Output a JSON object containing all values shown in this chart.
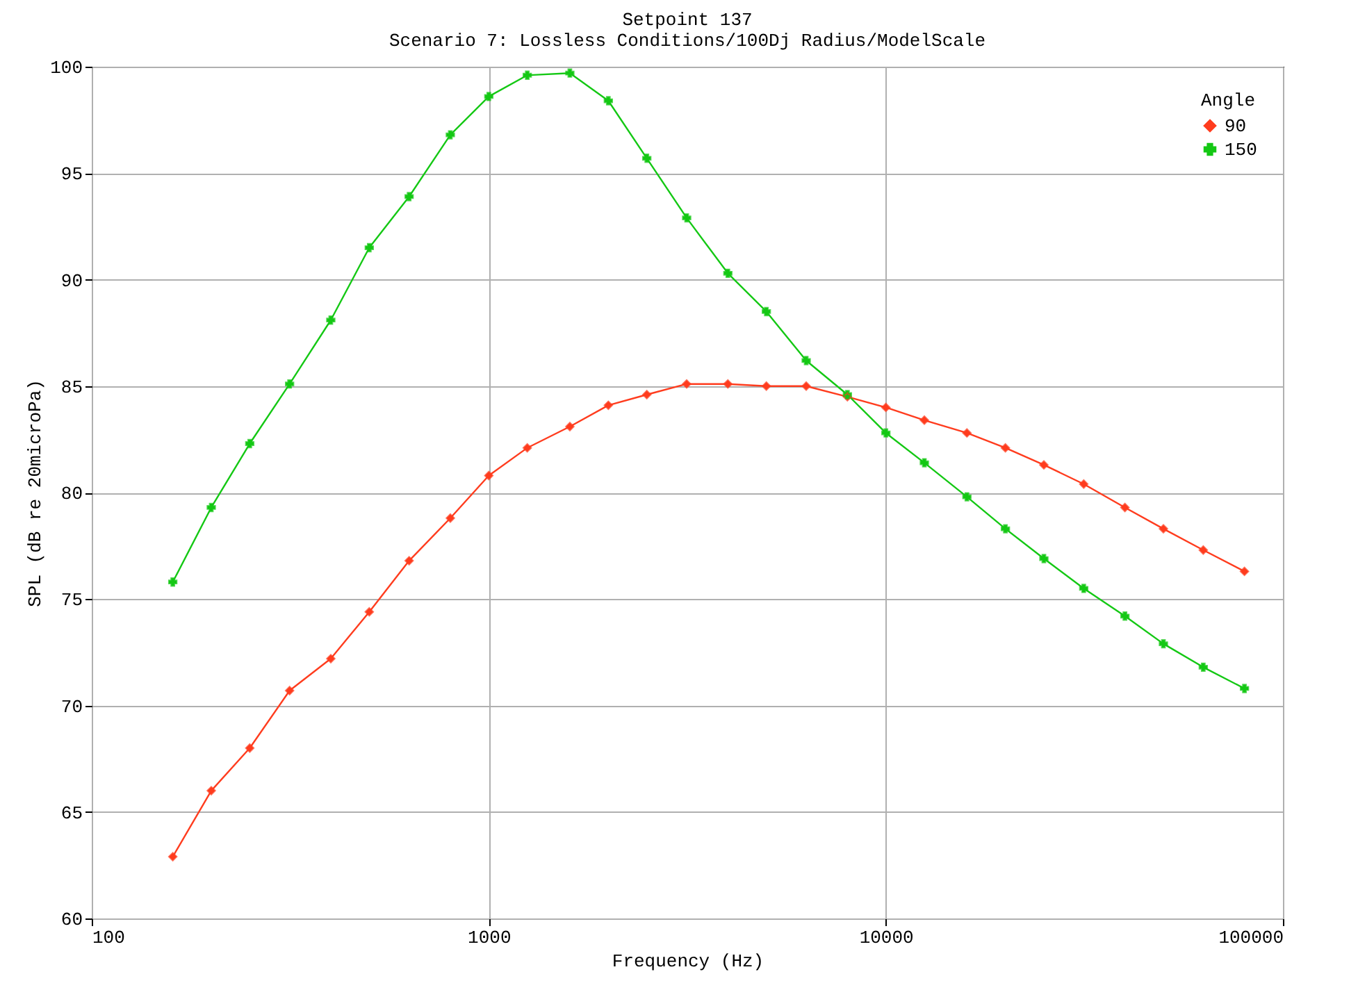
{
  "chart_data": {
    "type": "line",
    "title": "Setpoint 137",
    "subtitle": "Scenario 7: Lossless Conditions/100Dj Radius/ModelScale",
    "xlabel": "Frequency (Hz)",
    "ylabel": "SPL (dB re 20microPa)",
    "legend_title": "Angle",
    "log": "x",
    "x": [
      160,
      200,
      250,
      315,
      400,
      500,
      630,
      800,
      1000,
      1250,
      1600,
      2000,
      2500,
      3150,
      4000,
      5000,
      6300,
      8000,
      10000,
      12500,
      16000,
      20000,
      25000,
      31500,
      40000,
      50000,
      63000,
      80000
    ],
    "series": [
      {
        "name": "90",
        "color": "#ff3c1e",
        "marker": "diamond",
        "values": [
          62.9,
          66.0,
          68.0,
          70.7,
          72.2,
          74.4,
          76.8,
          78.8,
          80.8,
          82.1,
          83.1,
          84.1,
          84.6,
          85.1,
          85.1,
          85.0,
          85.0,
          84.5,
          84.0,
          83.4,
          82.8,
          82.1,
          81.3,
          80.4,
          79.3,
          78.3,
          77.3,
          76.3
        ]
      },
      {
        "name": "150",
        "color": "#14c814",
        "marker": "cross",
        "values": [
          75.8,
          79.3,
          82.3,
          85.1,
          88.1,
          91.5,
          93.9,
          96.8,
          98.6,
          99.6,
          99.7,
          98.4,
          95.7,
          92.9,
          90.3,
          88.5,
          86.2,
          84.6,
          82.8,
          81.4,
          79.8,
          78.3,
          76.9,
          75.5,
          74.2,
          72.9,
          71.8,
          70.8
        ]
      }
    ],
    "xlim": [
      100,
      100000
    ],
    "xticks": [
      100,
      1000,
      10000,
      100000
    ],
    "ylim": [
      60,
      100
    ],
    "yticks": [
      60,
      65,
      70,
      75,
      80,
      85,
      90,
      95,
      100
    ],
    "grid": true,
    "legend": "top right",
    "line_style": "solid"
  }
}
